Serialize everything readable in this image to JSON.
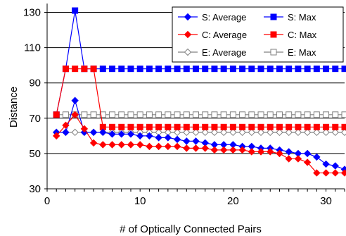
{
  "chart_data": {
    "type": "line",
    "title": "",
    "xlabel": "# of Optically Connected Pairs",
    "ylabel": "Distance",
    "xlim": [
      0,
      32
    ],
    "ylim": [
      30,
      135
    ],
    "xticks": [
      0,
      10,
      20,
      30
    ],
    "yticks": [
      30,
      50,
      70,
      90,
      110,
      130
    ],
    "grid": "horizontal",
    "legend_position": "top-right",
    "x": [
      1,
      2,
      3,
      4,
      5,
      6,
      7,
      8,
      9,
      10,
      11,
      12,
      13,
      14,
      15,
      16,
      17,
      18,
      19,
      20,
      21,
      22,
      23,
      24,
      25,
      26,
      27,
      28,
      29,
      30,
      31,
      32
    ],
    "series": [
      {
        "name": "S: Average",
        "color": "#0000ff",
        "marker": "diamond",
        "filled": true,
        "values": [
          62,
          62,
          80,
          62,
          62,
          62,
          61,
          61,
          61,
          60,
          60,
          59,
          59,
          58,
          57,
          57,
          56,
          55,
          55,
          55,
          54,
          54,
          53,
          53,
          52,
          51,
          50,
          50,
          48,
          44,
          43,
          41
        ]
      },
      {
        "name": "S: Max",
        "color": "#0000ff",
        "marker": "square",
        "filled": true,
        "values": [
          72,
          98,
          131,
          98,
          98,
          98,
          98,
          98,
          98,
          98,
          98,
          98,
          98,
          98,
          98,
          98,
          98,
          98,
          98,
          98,
          98,
          98,
          98,
          98,
          98,
          98,
          98,
          98,
          98,
          98,
          98,
          98
        ]
      },
      {
        "name": "C: Average",
        "color": "#ff0000",
        "marker": "diamond",
        "filled": true,
        "values": [
          60,
          66,
          72,
          64,
          56,
          55,
          55,
          55,
          55,
          55,
          54,
          54,
          54,
          54,
          53,
          53,
          53,
          52,
          52,
          52,
          52,
          51,
          51,
          51,
          50,
          47,
          47,
          45,
          39,
          39,
          39,
          39
        ]
      },
      {
        "name": "C: Max",
        "color": "#ff0000",
        "marker": "square",
        "filled": true,
        "values": [
          72,
          98,
          98,
          98,
          98,
          65,
          65,
          65,
          65,
          65,
          65,
          65,
          65,
          65,
          65,
          65,
          65,
          65,
          65,
          65,
          65,
          65,
          65,
          65,
          65,
          65,
          65,
          65,
          65,
          65,
          65,
          65
        ]
      },
      {
        "name": "E: Average",
        "color": "#808080",
        "marker": "diamond",
        "filled": false,
        "values": [
          62,
          62,
          62,
          62,
          62,
          62,
          62,
          62,
          62,
          62,
          62,
          62,
          62,
          62,
          62,
          62,
          62,
          62,
          62,
          62,
          62,
          62,
          62,
          62,
          62,
          62,
          62,
          62,
          62,
          62,
          62,
          62
        ]
      },
      {
        "name": "E: Max",
        "color": "#808080",
        "marker": "square",
        "filled": false,
        "values": [
          72,
          72,
          72,
          72,
          72,
          72,
          72,
          72,
          72,
          72,
          72,
          72,
          72,
          72,
          72,
          72,
          72,
          72,
          72,
          72,
          72,
          72,
          72,
          72,
          72,
          72,
          72,
          72,
          72,
          72,
          72,
          72
        ]
      }
    ]
  }
}
